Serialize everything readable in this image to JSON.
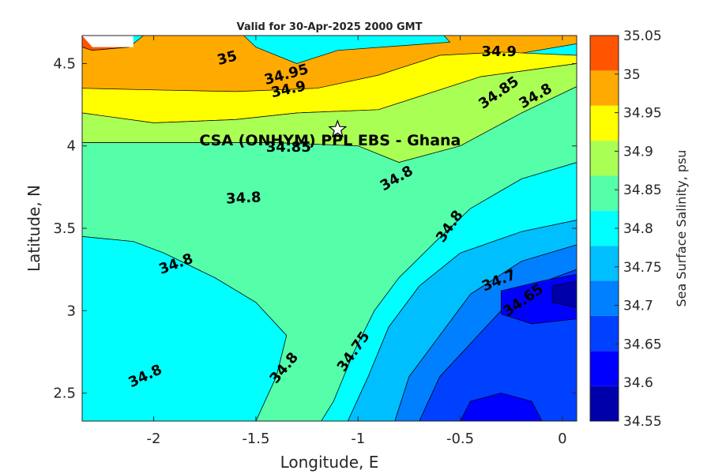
{
  "chart_data": {
    "type": "heatmap",
    "title": "Valid for 30-Apr-2025 2000 GMT",
    "xlabel": "Longitude, E",
    "ylabel": "Latitude, N",
    "colorbar_label": "Sea Surface Salinity, psu",
    "xlim": [
      -2.35,
      0.07
    ],
    "ylim": [
      2.33,
      4.67
    ],
    "x_ticks": [
      -2,
      -1.5,
      -1,
      -0.5,
      0
    ],
    "x_tick_labels": [
      "-2",
      "-1.5",
      "-1",
      "-0.5",
      "0"
    ],
    "y_ticks": [
      2.5,
      3,
      3.5,
      4,
      4.5
    ],
    "y_tick_labels": [
      "2.5",
      "3",
      "3.5",
      "4",
      "4.5"
    ],
    "colorbar_levels": [
      34.55,
      34.6,
      34.65,
      34.7,
      34.75,
      34.8,
      34.85,
      34.9,
      34.95,
      35,
      35.05
    ],
    "colorbar_tick_labels": [
      "34.55",
      "34.6",
      "34.65",
      "34.7",
      "34.75",
      "34.8",
      "34.85",
      "34.9",
      "34.95",
      "35",
      "35.05"
    ],
    "colorbar_colors": [
      "#0000aa",
      "#0000ff",
      "#0040ff",
      "#0080ff",
      "#00bfff",
      "#00ffff",
      "#55ffaa",
      "#aaff55",
      "#ffff00",
      "#ffaa00",
      "#ff5500"
    ],
    "contour_labels": [
      {
        "text": "35",
        "lon": -1.64,
        "lat": 4.53,
        "angle": -15
      },
      {
        "text": "34.95",
        "lon": -1.35,
        "lat": 4.43,
        "angle": -15
      },
      {
        "text": "34.9",
        "lon": -1.34,
        "lat": 4.34,
        "angle": -12
      },
      {
        "text": "34.9",
        "lon": -0.31,
        "lat": 4.57,
        "angle": 0
      },
      {
        "text": "34.85",
        "lon": -0.31,
        "lat": 4.32,
        "angle": -35
      },
      {
        "text": "34.8",
        "lon": -0.13,
        "lat": 4.3,
        "angle": -30
      },
      {
        "text": "34.85",
        "lon": -1.34,
        "lat": 3.99,
        "angle": 0
      },
      {
        "text": "34.8",
        "lon": -0.81,
        "lat": 3.8,
        "angle": -30
      },
      {
        "text": "34.8",
        "lon": -1.56,
        "lat": 3.68,
        "angle": -3
      },
      {
        "text": "34.8",
        "lon": -0.55,
        "lat": 3.51,
        "angle": -55
      },
      {
        "text": "34.8",
        "lon": -1.89,
        "lat": 3.28,
        "angle": -20
      },
      {
        "text": "34.7",
        "lon": -0.31,
        "lat": 3.18,
        "angle": -22
      },
      {
        "text": "34.65",
        "lon": -0.19,
        "lat": 3.06,
        "angle": -35
      },
      {
        "text": "34.75",
        "lon": -1.02,
        "lat": 2.75,
        "angle": -55
      },
      {
        "text": "34.8",
        "lon": -1.36,
        "lat": 2.65,
        "angle": -50
      },
      {
        "text": "34.8",
        "lon": -2.04,
        "lat": 2.6,
        "angle": -25
      }
    ],
    "site": {
      "name": "CSA (ONHYM) PPL EBS  - Ghana",
      "lon": -1.1,
      "lat": 4.1
    },
    "bands": [
      {
        "level": 35.0,
        "color": "#ff5500",
        "points": [
          [
            -2.35,
            4.67
          ],
          [
            -2.2,
            4.67
          ],
          [
            -2.12,
            4.6
          ],
          [
            -2.3,
            4.58
          ],
          [
            -2.35,
            4.6
          ]
        ]
      },
      {
        "level": 34.95,
        "color": "#ffaa00",
        "points": [
          [
            -2.35,
            4.6
          ],
          [
            -2.3,
            4.58
          ],
          [
            -2.12,
            4.6
          ],
          [
            -2.05,
            4.67
          ],
          [
            -1.56,
            4.67
          ],
          [
            -1.5,
            4.6
          ],
          [
            -1.3,
            4.5
          ],
          [
            -1.1,
            4.58
          ],
          [
            -0.55,
            4.63
          ],
          [
            -0.58,
            4.67
          ],
          [
            0.07,
            4.67
          ],
          [
            0.07,
            4.62
          ],
          [
            -0.5,
            4.5
          ],
          [
            -0.9,
            4.35
          ],
          [
            -1.2,
            4.28
          ],
          [
            -1.6,
            4.26
          ],
          [
            -2.0,
            4.28
          ],
          [
            -2.35,
            4.3
          ]
        ]
      },
      {
        "level": 34.9,
        "color": "#ffff00",
        "points": [
          [
            -2.35,
            4.35
          ],
          [
            -2.0,
            4.34
          ],
          [
            -1.6,
            4.33
          ],
          [
            -1.2,
            4.35
          ],
          [
            -0.9,
            4.43
          ],
          [
            -0.6,
            4.55
          ],
          [
            -0.3,
            4.57
          ],
          [
            0.07,
            4.55
          ],
          [
            0.07,
            4.5
          ],
          [
            -0.4,
            4.42
          ],
          [
            -0.9,
            4.22
          ],
          [
            -1.3,
            4.2
          ],
          [
            -1.6,
            4.16
          ],
          [
            -2.0,
            4.14
          ],
          [
            -2.35,
            4.2
          ]
        ]
      },
      {
        "level": 34.85,
        "color": "#aaff55",
        "points": [
          [
            -2.35,
            4.2
          ],
          [
            -2.0,
            4.14
          ],
          [
            -1.6,
            4.16
          ],
          [
            -1.3,
            4.2
          ],
          [
            -0.9,
            4.22
          ],
          [
            -0.4,
            4.42
          ],
          [
            0.07,
            4.5
          ],
          [
            0.07,
            4.36
          ],
          [
            -0.2,
            4.2
          ],
          [
            -0.5,
            4.0
          ],
          [
            -0.8,
            3.9
          ],
          [
            -1.0,
            4.0
          ],
          [
            -1.4,
            4.02
          ],
          [
            -1.8,
            4.02
          ],
          [
            -2.35,
            4.02
          ]
        ]
      },
      {
        "level": 34.8,
        "color": "#55ffaa",
        "points": [
          [
            -2.35,
            4.02
          ],
          [
            -1.8,
            4.02
          ],
          [
            -1.4,
            4.02
          ],
          [
            -1.0,
            4.0
          ],
          [
            -0.8,
            3.9
          ],
          [
            -0.5,
            4.0
          ],
          [
            -0.2,
            4.2
          ],
          [
            0.07,
            4.36
          ],
          [
            0.07,
            3.9
          ],
          [
            -0.2,
            3.8
          ],
          [
            -0.45,
            3.62
          ],
          [
            -0.62,
            3.42
          ],
          [
            -0.8,
            3.2
          ],
          [
            -0.92,
            3.0
          ],
          [
            -1.02,
            2.75
          ],
          [
            -1.12,
            2.45
          ],
          [
            -1.18,
            2.33
          ],
          [
            -1.5,
            2.33
          ],
          [
            -1.4,
            2.6
          ],
          [
            -1.35,
            2.85
          ],
          [
            -1.5,
            3.05
          ],
          [
            -1.7,
            3.2
          ],
          [
            -1.95,
            3.35
          ],
          [
            -2.1,
            3.42
          ],
          [
            -2.35,
            3.45
          ]
        ]
      },
      {
        "level": 34.75,
        "color": "#00ffff",
        "points": [
          [
            -2.35,
            3.45
          ],
          [
            -2.1,
            3.42
          ],
          [
            -1.95,
            3.35
          ],
          [
            -1.7,
            3.2
          ],
          [
            -1.5,
            3.05
          ],
          [
            -1.35,
            2.85
          ],
          [
            -1.4,
            2.6
          ],
          [
            -1.5,
            2.33
          ],
          [
            -2.35,
            2.33
          ]
        ]
      },
      {
        "level": 34.75,
        "color": "#00ffff",
        "points": [
          [
            -1.18,
            2.33
          ],
          [
            -1.12,
            2.45
          ],
          [
            -1.02,
            2.75
          ],
          [
            -0.92,
            3.0
          ],
          [
            -0.8,
            3.2
          ],
          [
            -0.62,
            3.42
          ],
          [
            -0.45,
            3.62
          ],
          [
            -0.2,
            3.8
          ],
          [
            0.07,
            3.9
          ],
          [
            0.07,
            3.55
          ],
          [
            -0.2,
            3.48
          ],
          [
            -0.5,
            3.35
          ],
          [
            -0.7,
            3.15
          ],
          [
            -0.85,
            2.9
          ],
          [
            -0.95,
            2.6
          ],
          [
            -1.05,
            2.33
          ]
        ]
      },
      {
        "level": 34.7,
        "color": "#00bfff",
        "points": [
          [
            -1.05,
            2.33
          ],
          [
            -0.95,
            2.6
          ],
          [
            -0.85,
            2.9
          ],
          [
            -0.7,
            3.15
          ],
          [
            -0.5,
            3.35
          ],
          [
            -0.2,
            3.48
          ],
          [
            0.07,
            3.55
          ],
          [
            0.07,
            3.4
          ],
          [
            -0.2,
            3.3
          ],
          [
            -0.45,
            3.1
          ],
          [
            -0.6,
            2.85
          ],
          [
            -0.75,
            2.6
          ],
          [
            -0.82,
            2.33
          ]
        ]
      },
      {
        "level": 34.65,
        "color": "#0080ff",
        "points": [
          [
            -0.82,
            2.33
          ],
          [
            -0.75,
            2.6
          ],
          [
            -0.6,
            2.85
          ],
          [
            -0.45,
            3.1
          ],
          [
            -0.2,
            3.3
          ],
          [
            0.07,
            3.4
          ],
          [
            0.07,
            3.25
          ],
          [
            -0.15,
            3.15
          ],
          [
            -0.3,
            3.0
          ],
          [
            -0.45,
            2.8
          ],
          [
            -0.6,
            2.6
          ],
          [
            -0.7,
            2.33
          ]
        ]
      },
      {
        "level": 34.6,
        "color": "#0040ff",
        "points": [
          [
            -0.7,
            2.33
          ],
          [
            -0.6,
            2.6
          ],
          [
            -0.45,
            2.8
          ],
          [
            -0.3,
            3.0
          ],
          [
            -0.15,
            3.15
          ],
          [
            0.07,
            3.25
          ],
          [
            0.07,
            2.33
          ]
        ]
      },
      {
        "level": 34.55,
        "color": "#0000ff",
        "points": [
          [
            -0.3,
            3.12
          ],
          [
            -0.1,
            3.18
          ],
          [
            0.07,
            3.22
          ],
          [
            0.07,
            2.95
          ],
          [
            -0.15,
            2.92
          ],
          [
            -0.3,
            2.98
          ]
        ]
      },
      {
        "level": 34.55,
        "color": "#0000ff",
        "points": [
          [
            -0.5,
            2.33
          ],
          [
            -0.45,
            2.45
          ],
          [
            -0.3,
            2.5
          ],
          [
            -0.15,
            2.45
          ],
          [
            -0.1,
            2.33
          ]
        ]
      },
      {
        "level": 34.5,
        "color": "#0000aa",
        "points": [
          [
            -0.05,
            3.15
          ],
          [
            0.07,
            3.18
          ],
          [
            0.07,
            3.02
          ],
          [
            -0.05,
            3.05
          ]
        ]
      }
    ],
    "mask": [
      [
        -2.35,
        4.67
      ],
      [
        -2.1,
        4.67
      ],
      [
        -2.1,
        4.6
      ],
      [
        -2.3,
        4.6
      ]
    ]
  }
}
